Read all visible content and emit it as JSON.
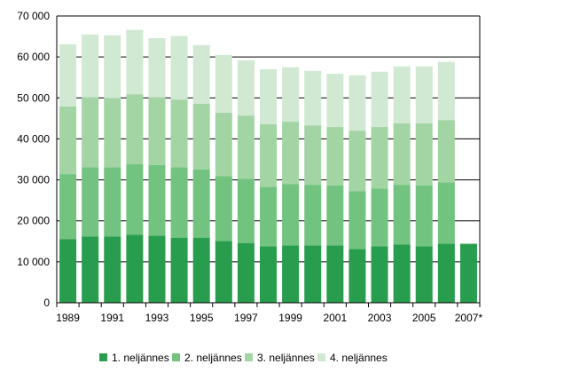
{
  "chart_data": {
    "type": "bar",
    "stacked": true,
    "title": "",
    "xlabel": "",
    "ylabel": "",
    "ylim": [
      0,
      70000
    ],
    "yticks": [
      "0",
      "10 000",
      "20 000",
      "30 000",
      "40 000",
      "50 000",
      "60 000",
      "70 000"
    ],
    "grid": true,
    "legend_position": "bottom",
    "categories": [
      "1989",
      "1990",
      "1991",
      "1992",
      "1993",
      "1994",
      "1995",
      "1996",
      "1997",
      "1998",
      "1999",
      "2000",
      "2001",
      "2002",
      "2003",
      "2004",
      "2005",
      "2006",
      "2007*"
    ],
    "xtick_labels": [
      "1989",
      "",
      "1991",
      "",
      "1993",
      "",
      "1995",
      "",
      "1997",
      "",
      "1999",
      "",
      "2001",
      "",
      "2003",
      "",
      "2005",
      "",
      "2007*"
    ],
    "series": [
      {
        "name": "1. neljännes",
        "color": "#279d4d",
        "values": [
          15500,
          16200,
          16200,
          16600,
          16400,
          15900,
          15900,
          15100,
          14600,
          13800,
          14000,
          14000,
          14000,
          13100,
          13800,
          14200,
          13800,
          14400,
          14400
        ]
      },
      {
        "name": "2. neljännes",
        "color": "#72c380",
        "values": [
          15900,
          16900,
          16900,
          17200,
          17200,
          17200,
          16600,
          15800,
          15700,
          14500,
          15000,
          14800,
          14600,
          14100,
          14100,
          14600,
          14800,
          15000,
          null
        ]
      },
      {
        "name": "3. neljännes",
        "color": "#a3d4a3",
        "values": [
          16500,
          17000,
          16800,
          17100,
          16500,
          16500,
          16100,
          15500,
          15400,
          15300,
          15200,
          14500,
          14300,
          14800,
          15000,
          15000,
          15200,
          15200,
          null
        ]
      },
      {
        "name": "4. neljännes",
        "color": "#d1e8d3",
        "values": [
          15200,
          15400,
          15400,
          15700,
          14500,
          15500,
          14300,
          14100,
          13500,
          13400,
          13300,
          13300,
          13000,
          13500,
          13500,
          13900,
          13900,
          14200,
          null
        ]
      }
    ]
  }
}
